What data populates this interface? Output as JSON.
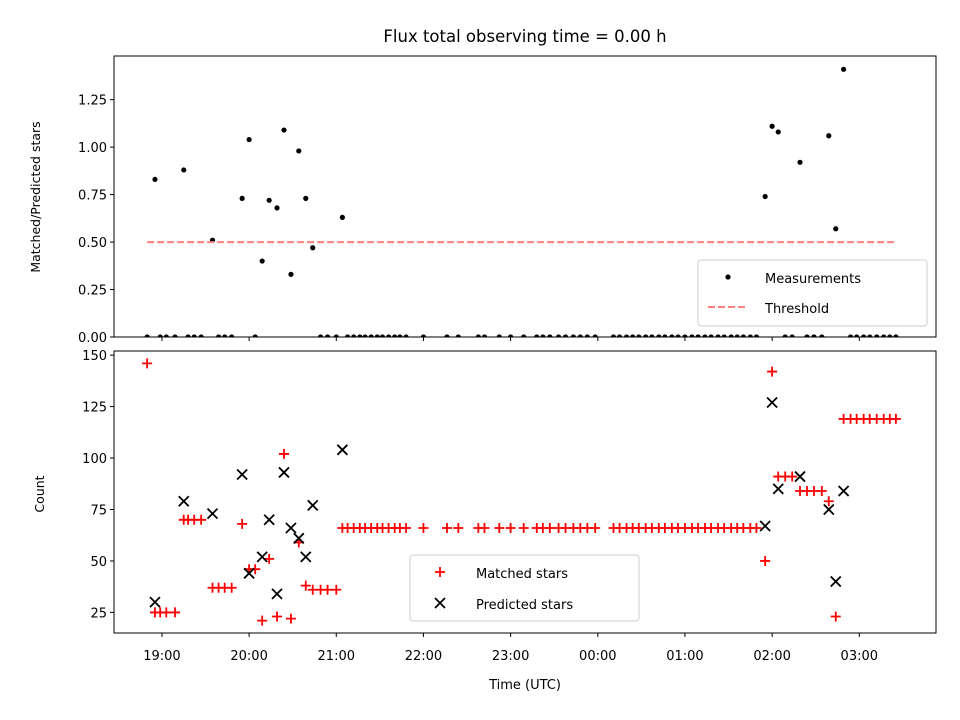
{
  "chart_data": [
    {
      "type": "scatter",
      "title": "Flux total observing time = 0.00 h",
      "ylabel": "Matched/Predicted stars",
      "xlabel": "",
      "xlim": [
        18.45,
        27.88
      ],
      "ylim": [
        0,
        1.48
      ],
      "xtick_labels_visible": false,
      "yticks": [
        0.0,
        0.25,
        0.5,
        0.75,
        1.0,
        1.25
      ],
      "ytick_labels": [
        "0.00",
        "0.25",
        "0.50",
        "0.75",
        "1.00",
        "1.25"
      ],
      "legend": {
        "placement": "bottom-right",
        "entries": [
          "Measurements",
          "Threshold"
        ]
      },
      "series": [
        {
          "name": "Measurements",
          "marker": "dot",
          "color": "#000000",
          "points": [
            [
              18.83,
              0.0
            ],
            [
              18.92,
              0.83
            ],
            [
              18.98,
              0.0
            ],
            [
              19.05,
              0.0
            ],
            [
              19.15,
              0.0
            ],
            [
              19.25,
              0.88
            ],
            [
              19.3,
              0.0
            ],
            [
              19.37,
              0.0
            ],
            [
              19.45,
              0.0
            ],
            [
              19.58,
              0.51
            ],
            [
              19.65,
              0.0
            ],
            [
              19.72,
              0.0
            ],
            [
              19.8,
              0.0
            ],
            [
              19.92,
              0.73
            ],
            [
              20.0,
              1.04
            ],
            [
              20.07,
              0.0
            ],
            [
              20.15,
              0.4
            ],
            [
              20.23,
              0.72
            ],
            [
              20.32,
              0.68
            ],
            [
              20.4,
              1.09
            ],
            [
              20.48,
              0.33
            ],
            [
              20.57,
              0.98
            ],
            [
              20.65,
              0.73
            ],
            [
              20.73,
              0.47
            ],
            [
              20.82,
              0.0
            ],
            [
              20.9,
              0.0
            ],
            [
              21.0,
              0.0
            ],
            [
              21.07,
              0.63
            ],
            [
              21.13,
              0.0
            ],
            [
              21.2,
              0.0
            ],
            [
              21.27,
              0.0
            ],
            [
              21.33,
              0.0
            ],
            [
              21.4,
              0.0
            ],
            [
              21.47,
              0.0
            ],
            [
              21.53,
              0.0
            ],
            [
              21.6,
              0.0
            ],
            [
              21.67,
              0.0
            ],
            [
              21.73,
              0.0
            ],
            [
              21.8,
              0.0
            ],
            [
              22.0,
              0.0
            ],
            [
              22.27,
              0.0
            ],
            [
              22.4,
              0.0
            ],
            [
              22.63,
              0.0
            ],
            [
              22.7,
              0.0
            ],
            [
              22.87,
              0.0
            ],
            [
              23.0,
              0.0
            ],
            [
              23.15,
              0.0
            ],
            [
              23.3,
              0.0
            ],
            [
              23.37,
              0.0
            ],
            [
              23.45,
              0.0
            ],
            [
              23.55,
              0.0
            ],
            [
              23.63,
              0.0
            ],
            [
              23.72,
              0.0
            ],
            [
              23.8,
              0.0
            ],
            [
              23.88,
              0.0
            ],
            [
              23.97,
              0.0
            ],
            [
              24.18,
              0.0
            ],
            [
              24.25,
              0.0
            ],
            [
              24.33,
              0.0
            ],
            [
              24.4,
              0.0
            ],
            [
              24.47,
              0.0
            ],
            [
              24.55,
              0.0
            ],
            [
              24.62,
              0.0
            ],
            [
              24.7,
              0.0
            ],
            [
              24.77,
              0.0
            ],
            [
              24.85,
              0.0
            ],
            [
              24.92,
              0.0
            ],
            [
              25.0,
              0.0
            ],
            [
              25.08,
              0.0
            ],
            [
              25.15,
              0.0
            ],
            [
              25.23,
              0.0
            ],
            [
              25.3,
              0.0
            ],
            [
              25.38,
              0.0
            ],
            [
              25.45,
              0.0
            ],
            [
              25.53,
              0.0
            ],
            [
              25.6,
              0.0
            ],
            [
              25.67,
              0.0
            ],
            [
              25.75,
              0.0
            ],
            [
              25.82,
              0.0
            ],
            [
              25.92,
              0.74
            ],
            [
              26.0,
              1.11
            ],
            [
              26.07,
              1.08
            ],
            [
              26.15,
              0.0
            ],
            [
              26.23,
              0.0
            ],
            [
              26.32,
              0.92
            ],
            [
              26.4,
              0.0
            ],
            [
              26.48,
              0.0
            ],
            [
              26.57,
              0.0
            ],
            [
              26.65,
              1.06
            ],
            [
              26.73,
              0.57
            ],
            [
              26.82,
              1.41
            ],
            [
              26.9,
              0.0
            ],
            [
              26.97,
              0.0
            ],
            [
              27.05,
              0.0
            ],
            [
              27.12,
              0.0
            ],
            [
              27.2,
              0.0
            ],
            [
              27.28,
              0.0
            ],
            [
              27.35,
              0.0
            ],
            [
              27.42,
              0.0
            ]
          ]
        },
        {
          "name": "Threshold",
          "marker": "dashed-line",
          "color": "#ff7f7f",
          "points": [
            [
              18.83,
              0.5
            ],
            [
              27.42,
              0.5
            ]
          ]
        }
      ]
    },
    {
      "type": "scatter",
      "title": "",
      "xlabel": "Time (UTC)",
      "ylabel": "Count",
      "xlim": [
        18.45,
        27.88
      ],
      "ylim": [
        15,
        152
      ],
      "xticks": [
        19,
        20,
        21,
        22,
        23,
        24,
        25,
        26,
        27
      ],
      "xtick_labels": [
        "19:00",
        "20:00",
        "21:00",
        "22:00",
        "23:00",
        "00:00",
        "01:00",
        "02:00",
        "03:00"
      ],
      "yticks": [
        25,
        50,
        75,
        100,
        125,
        150
      ],
      "ytick_labels": [
        "25",
        "50",
        "75",
        "100",
        "125",
        "150"
      ],
      "legend": {
        "placement": "bottom-center",
        "entries": [
          "Matched stars",
          "Predicted stars"
        ]
      },
      "series": [
        {
          "name": "Matched stars",
          "marker": "plus",
          "color": "#ff0000",
          "points": [
            [
              18.83,
              146
            ],
            [
              18.92,
              25
            ],
            [
              18.98,
              25
            ],
            [
              19.05,
              25
            ],
            [
              19.15,
              25
            ],
            [
              19.25,
              70
            ],
            [
              19.3,
              70
            ],
            [
              19.37,
              70
            ],
            [
              19.45,
              70
            ],
            [
              19.58,
              37
            ],
            [
              19.65,
              37
            ],
            [
              19.72,
              37
            ],
            [
              19.8,
              37
            ],
            [
              19.92,
              68
            ],
            [
              20.0,
              46
            ],
            [
              20.07,
              46
            ],
            [
              20.15,
              21
            ],
            [
              20.23,
              51
            ],
            [
              20.32,
              23
            ],
            [
              20.4,
              102
            ],
            [
              20.48,
              22
            ],
            [
              20.57,
              59
            ],
            [
              20.65,
              38
            ],
            [
              20.73,
              36
            ],
            [
              20.82,
              36
            ],
            [
              20.9,
              36
            ],
            [
              21.0,
              36
            ],
            [
              21.07,
              66
            ],
            [
              21.13,
              66
            ],
            [
              21.2,
              66
            ],
            [
              21.27,
              66
            ],
            [
              21.33,
              66
            ],
            [
              21.4,
              66
            ],
            [
              21.47,
              66
            ],
            [
              21.53,
              66
            ],
            [
              21.6,
              66
            ],
            [
              21.67,
              66
            ],
            [
              21.73,
              66
            ],
            [
              21.8,
              66
            ],
            [
              22.0,
              66
            ],
            [
              22.27,
              66
            ],
            [
              22.4,
              66
            ],
            [
              22.63,
              66
            ],
            [
              22.7,
              66
            ],
            [
              22.87,
              66
            ],
            [
              23.0,
              66
            ],
            [
              23.15,
              66
            ],
            [
              23.3,
              66
            ],
            [
              23.37,
              66
            ],
            [
              23.45,
              66
            ],
            [
              23.55,
              66
            ],
            [
              23.63,
              66
            ],
            [
              23.72,
              66
            ],
            [
              23.8,
              66
            ],
            [
              23.88,
              66
            ],
            [
              23.97,
              66
            ],
            [
              24.18,
              66
            ],
            [
              24.25,
              66
            ],
            [
              24.33,
              66
            ],
            [
              24.4,
              66
            ],
            [
              24.47,
              66
            ],
            [
              24.55,
              66
            ],
            [
              24.62,
              66
            ],
            [
              24.7,
              66
            ],
            [
              24.77,
              66
            ],
            [
              24.85,
              66
            ],
            [
              24.92,
              66
            ],
            [
              25.0,
              66
            ],
            [
              25.08,
              66
            ],
            [
              25.15,
              66
            ],
            [
              25.23,
              66
            ],
            [
              25.3,
              66
            ],
            [
              25.38,
              66
            ],
            [
              25.45,
              66
            ],
            [
              25.53,
              66
            ],
            [
              25.6,
              66
            ],
            [
              25.67,
              66
            ],
            [
              25.75,
              66
            ],
            [
              25.82,
              66
            ],
            [
              25.92,
              50
            ],
            [
              26.0,
              142
            ],
            [
              26.07,
              91
            ],
            [
              26.15,
              91
            ],
            [
              26.23,
              91
            ],
            [
              26.32,
              84
            ],
            [
              26.4,
              84
            ],
            [
              26.48,
              84
            ],
            [
              26.57,
              84
            ],
            [
              26.65,
              79
            ],
            [
              26.73,
              23
            ],
            [
              26.82,
              119
            ],
            [
              26.9,
              119
            ],
            [
              26.97,
              119
            ],
            [
              27.05,
              119
            ],
            [
              27.12,
              119
            ],
            [
              27.2,
              119
            ],
            [
              27.28,
              119
            ],
            [
              27.35,
              119
            ],
            [
              27.42,
              119
            ]
          ]
        },
        {
          "name": "Predicted stars",
          "marker": "x",
          "color": "#000000",
          "points": [
            [
              18.92,
              30
            ],
            [
              19.25,
              79
            ],
            [
              19.58,
              73
            ],
            [
              19.92,
              92
            ],
            [
              20.0,
              44
            ],
            [
              20.15,
              52
            ],
            [
              20.23,
              70
            ],
            [
              20.32,
              34
            ],
            [
              20.4,
              93
            ],
            [
              20.48,
              66
            ],
            [
              20.57,
              61
            ],
            [
              20.65,
              52
            ],
            [
              20.73,
              77
            ],
            [
              21.07,
              104
            ],
            [
              25.92,
              67
            ],
            [
              26.0,
              127
            ],
            [
              26.07,
              85
            ],
            [
              26.32,
              91
            ],
            [
              26.65,
              75
            ],
            [
              26.73,
              40
            ],
            [
              26.82,
              84
            ]
          ]
        }
      ]
    }
  ]
}
